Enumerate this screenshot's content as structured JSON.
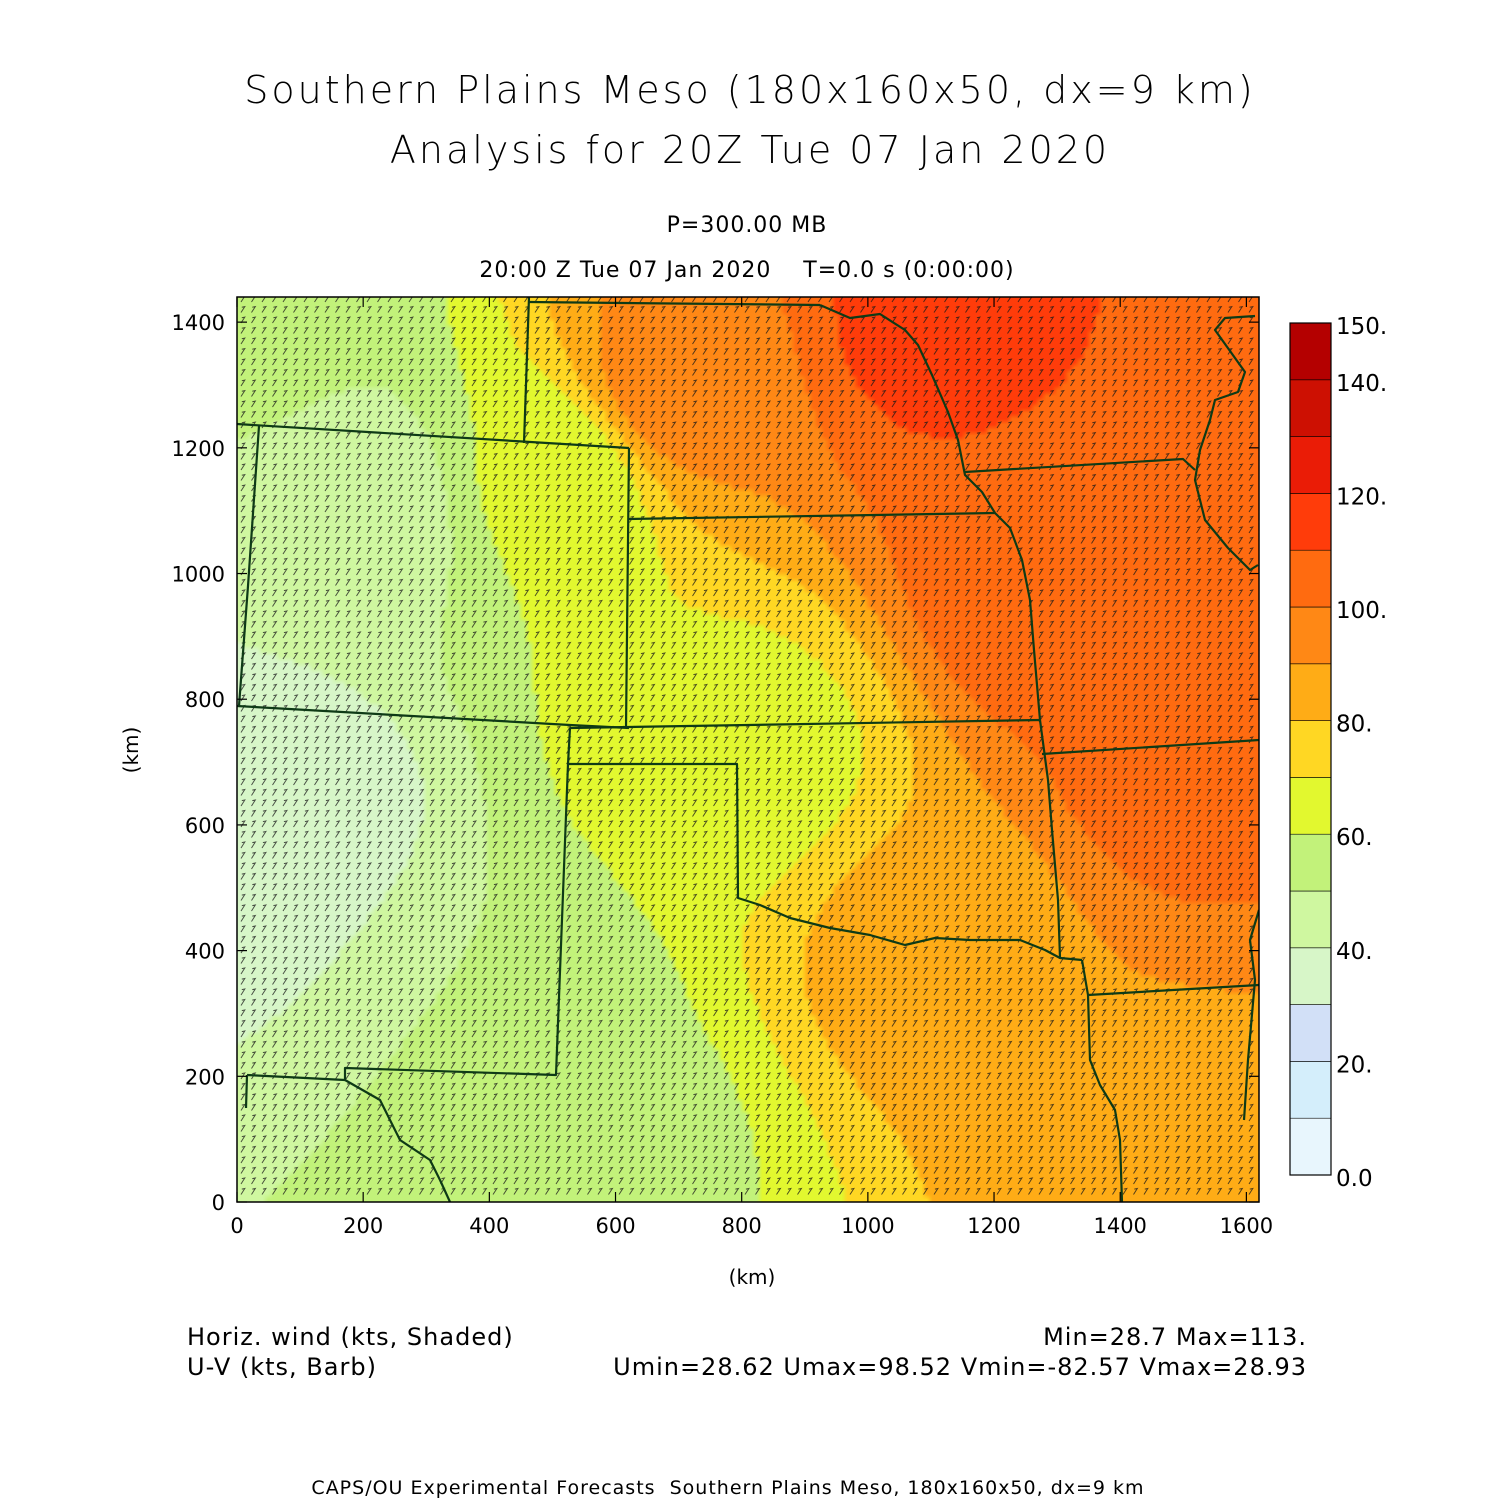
{
  "header": {
    "title_line1": "Southern Plains Meso (180x160x50, dx=9 km)",
    "title_line2": "Analysis for 20Z Tue 07 Jan 2020",
    "level": "P=300.00 MB",
    "valid_time": "20:00 Z Tue 07 Jan 2020    T=0.0 s (0:00:00)"
  },
  "footer": {
    "shaded_field": "Horiz. wind (kts, Shaded)",
    "barb_field": "U-V (kts, Barb)",
    "minmax": "Min=28.7 Max=113.",
    "uv_stats": "Umin=28.62 Umax=98.52 Vmin=-82.57 Vmax=28.93",
    "credit": "CAPS/OU Experimental Forecasts  Southern Plains Meso, 180x160x50, dx=9 km"
  },
  "chart_data": {
    "type": "heatmap",
    "title": "Southern Plains Meso (180x160x50, dx=9 km)",
    "subtitle": "Analysis for 20Z Tue 07 Jan 2020",
    "xlabel": "(km)",
    "ylabel": "(km)",
    "xlim": [
      0,
      1620
    ],
    "ylim": [
      0,
      1440
    ],
    "x_ticks": [
      0,
      200,
      400,
      600,
      800,
      1000,
      1200,
      1400,
      1600
    ],
    "y_ticks": [
      0,
      200,
      400,
      600,
      800,
      1000,
      1200,
      1400
    ],
    "colorbar": {
      "levels": [
        0,
        10,
        20,
        30,
        40,
        50,
        60,
        70,
        80,
        90,
        100,
        110,
        120,
        130,
        140,
        150
      ],
      "colors": [
        "#e8f6fd",
        "#d4eefb",
        "#d2e0f7",
        "#d7f6c8",
        "#cff7a0",
        "#c2f27a",
        "#e2f82f",
        "#ffd723",
        "#ffac16",
        "#ff8815",
        "#ff6b10",
        "#ff3c0a",
        "#ea1c06",
        "#cd1002",
        "#b40000"
      ],
      "labels": [
        "0.0",
        "20.",
        "40.",
        "60.",
        "80.",
        "100.",
        "120.",
        "140.",
        "150."
      ],
      "label_values": [
        0,
        20,
        40,
        60,
        80,
        100,
        120,
        140,
        150
      ]
    },
    "field_samples_kts": [
      {
        "x": 30,
        "y": 1400,
        "speed": 52
      },
      {
        "x": 200,
        "y": 1100,
        "speed": 45
      },
      {
        "x": 500,
        "y": 1150,
        "speed": 62
      },
      {
        "x": 700,
        "y": 1300,
        "speed": 95
      },
      {
        "x": 1100,
        "y": 1400,
        "speed": 112
      },
      {
        "x": 1300,
        "y": 1000,
        "speed": 108
      },
      {
        "x": 1500,
        "y": 700,
        "speed": 103
      },
      {
        "x": 800,
        "y": 700,
        "speed": 66
      },
      {
        "x": 1100,
        "y": 400,
        "speed": 84
      },
      {
        "x": 1500,
        "y": 100,
        "speed": 88
      },
      {
        "x": 30,
        "y": 600,
        "speed": 30
      },
      {
        "x": 400,
        "y": 300,
        "speed": 50
      },
      {
        "x": 600,
        "y": 100,
        "speed": 58
      }
    ],
    "barbs": "U-V wind barbs plotted at every grid point"
  }
}
